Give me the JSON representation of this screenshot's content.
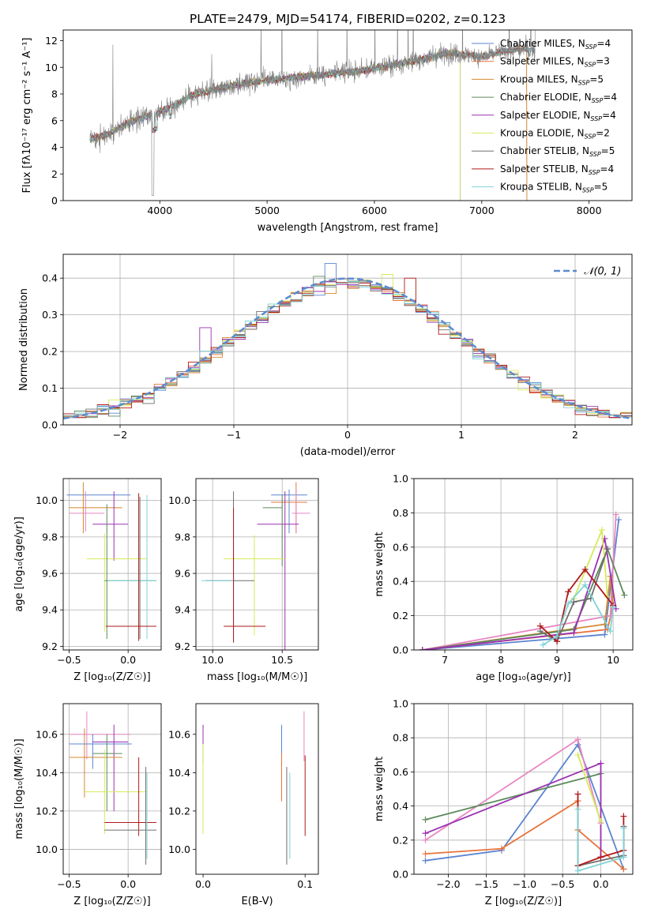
{
  "figure_title": "PLATE=2479, MJD=54174, FIBERID=0202, z=0.123",
  "colors": {
    "Chabrier MILES": "#5b85d0",
    "Salpeter MILES": "#e8743b",
    "Kroupa MILES": "#d4882f",
    "Chabrier ELODIE": "#5c8a5c",
    "Salpeter ELODIE": "#9b30b0",
    "Kroupa ELODIE": "#d6ea5a",
    "Chabrier STELIB": "#6e6e6e",
    "Salpeter STELIB": "#b01a1a",
    "Kroupa STELIB": "#7fd3d8",
    "pink": "#e886c2",
    "gauss": "#5b8bd0"
  },
  "chart_data": [
    {
      "id": "spectrum",
      "type": "line",
      "title": "PLATE=2479, MJD=54174, FIBERID=0202, z=0.123",
      "xlabel": "wavelength [Angstrom, rest frame]",
      "ylabel": "Flux [fλ10⁻¹⁷ erg cm⁻² s⁻¹ A⁻¹]",
      "xlim": [
        3100,
        8400
      ],
      "ylim": [
        0,
        12.8
      ],
      "xticks": [
        4000,
        5000,
        6000,
        7000,
        8000
      ],
      "yticks": [
        0,
        2,
        4,
        6,
        8,
        10,
        12
      ],
      "grid": false,
      "legend_position": "upper-right",
      "data_color": "#808080",
      "continuum": {
        "x": [
          3350,
          3500,
          3700,
          3900,
          4100,
          4300,
          4500,
          4700,
          5000,
          5300,
          5600,
          5900,
          6200,
          6500,
          6700,
          7000,
          7200,
          7400,
          7500
        ],
        "y": [
          4.6,
          4.9,
          5.8,
          6.4,
          7.0,
          7.9,
          8.3,
          8.7,
          9.0,
          9.3,
          9.5,
          9.8,
          10.2,
          10.7,
          11.1,
          10.8,
          11.2,
          11.4,
          11.3
        ]
      },
      "series": [
        {
          "name": "Chabrier MILES, N_SSP=4",
          "label_main": "Chabrier MILES, N",
          "label_sub": "SSP",
          "label_end": "=4",
          "color_key": "Chabrier MILES",
          "xmax": 7500
        },
        {
          "name": "Salpeter MILES, N_SSP=3",
          "label_main": "Salpeter MILES, N",
          "label_sub": "SSP",
          "label_end": "=3",
          "color_key": "Salpeter MILES",
          "xmax": 7420
        },
        {
          "name": "Kroupa MILES, N_SSP=5",
          "label_main": "Kroupa MILES, N",
          "label_sub": "SSP",
          "label_end": "=5",
          "color_key": "Kroupa MILES",
          "xmax": 7420
        },
        {
          "name": "Chabrier ELODIE, N_SSP=4",
          "label_main": "Chabrier ELODIE, N",
          "label_sub": "SSP",
          "label_end": "=4",
          "color_key": "Chabrier ELODIE",
          "xmax": 6800
        },
        {
          "name": "Salpeter ELODIE, N_SSP=4",
          "label_main": "Salpeter ELODIE, N",
          "label_sub": "SSP",
          "label_end": "=4",
          "color_key": "Salpeter ELODIE",
          "xmax": 6800
        },
        {
          "name": "Kroupa ELODIE, N_SSP=2",
          "label_main": "Kroupa ELODIE, N",
          "label_sub": "SSP",
          "label_end": "=2",
          "color_key": "Kroupa ELODIE",
          "xmax": 6800
        },
        {
          "name": "Chabrier STELIB, N_SSP=5",
          "label_main": "Chabrier STELIB, N",
          "label_sub": "SSP",
          "label_end": "=5",
          "color_key": "Chabrier STELIB",
          "xmax": 7500
        },
        {
          "name": "Salpeter STELIB, N_SSP=4",
          "label_main": "Salpeter STELIB, N",
          "label_sub": "SSP",
          "label_end": "=4",
          "color_key": "Salpeter STELIB",
          "xmax": 7500
        },
        {
          "name": "Kroupa STELIB, N_SSP=5",
          "label_main": "Kroupa STELIB, N",
          "label_sub": "SSP",
          "label_end": "=5",
          "color_key": "Kroupa STELIB",
          "xmax": 7500
        }
      ]
    },
    {
      "id": "residuals",
      "type": "histogram",
      "xlabel": "(data-model)/error",
      "ylabel": "Normed distribution",
      "xlim": [
        -2.5,
        2.5
      ],
      "ylim": [
        0,
        0.465
      ],
      "xticks": [
        -2,
        -1,
        0,
        1,
        2
      ],
      "yticks": [
        0.0,
        0.1,
        0.2,
        0.3,
        0.4
      ],
      "grid": true,
      "bin_width": 0.1,
      "legend": "𝒩(0, 1)",
      "legend_position": "upper-right",
      "reference_curve": "normal(0,1)",
      "anomalies": [
        {
          "series": 4,
          "x": -1.25,
          "y": 0.265
        },
        {
          "series": 3,
          "x": -0.25,
          "y": 0.405
        },
        {
          "series": 0,
          "x": -0.15,
          "y": 0.44
        },
        {
          "series": 5,
          "x": 0.35,
          "y": 0.41
        },
        {
          "series": 7,
          "x": 0.55,
          "y": 0.4
        }
      ]
    },
    {
      "id": "age_vs_Z",
      "type": "errorbar",
      "xlabel": "Z [log₁₀(Z/Z☉)]",
      "ylabel": "age  [log₁₀(age/yr)]",
      "xlim": [
        -0.55,
        0.28
      ],
      "ylim": [
        9.18,
        10.12
      ],
      "xticks": [
        -0.5,
        0.0
      ],
      "yticks": [
        9.2,
        9.4,
        9.6,
        9.8,
        10.0
      ],
      "grid": true,
      "points": [
        {
          "color_key": "Chabrier MILES",
          "x": -0.18,
          "xlo": -0.52,
          "xhi": 0.02,
          "y": 10.03,
          "ylo": 10.03,
          "yhi": 10.03
        },
        {
          "color_key": "Kroupa MILES",
          "x": -0.38,
          "xlo": -0.5,
          "xhi": -0.05,
          "y": 9.96,
          "ylo": 9.82,
          "yhi": 10.1
        },
        {
          "color_key": "pink",
          "x": -0.36,
          "xlo": -0.5,
          "xhi": -0.2,
          "y": 9.93,
          "ylo": 9.83,
          "yhi": 10.05
        },
        {
          "color_key": "Salpeter ELODIE",
          "x": -0.12,
          "xlo": -0.3,
          "xhi": -0.0,
          "y": 9.87,
          "ylo": 9.67,
          "yhi": 10.05
        },
        {
          "color_key": "Kroupa ELODIE",
          "x": -0.2,
          "xlo": -0.35,
          "xhi": 0.16,
          "y": 9.68,
          "ylo": 9.28,
          "yhi": 9.82
        },
        {
          "color_key": "Chabrier ELODIE",
          "x": -0.18,
          "xlo": -0.2,
          "xhi": 0.24,
          "y": 9.56,
          "ylo": 9.24,
          "yhi": 9.98
        },
        {
          "color_key": "Kroupa STELIB",
          "x": 0.16,
          "xlo": -0.17,
          "xhi": 0.24,
          "y": 9.56,
          "ylo": 9.24,
          "yhi": 10.03
        },
        {
          "color_key": "Chabrier STELIB",
          "x": 0.1,
          "xlo": 0.1,
          "xhi": 0.1,
          "y": 9.7,
          "ylo": 9.24,
          "yhi": 10.02
        },
        {
          "color_key": "Salpeter STELIB",
          "x": 0.09,
          "xlo": -0.19,
          "xhi": 0.24,
          "y": 9.31,
          "ylo": 9.23,
          "yhi": 10.04
        }
      ]
    },
    {
      "id": "age_vs_mass",
      "type": "errorbar",
      "xlabel": "mass [log₁₀(M/M☉)]",
      "ylabel": "",
      "xlim": [
        9.88,
        10.76
      ],
      "ylim": [
        9.18,
        10.12
      ],
      "xticks": [
        10.0,
        10.5
      ],
      "yticks": [
        9.2,
        9.4,
        9.6,
        9.8,
        10.0
      ],
      "grid": true,
      "points": [
        {
          "color_key": "Chabrier MILES",
          "x": 10.55,
          "xlo": 10.42,
          "xhi": 10.68,
          "y": 10.03,
          "ylo": 9.82,
          "yhi": 10.06
        },
        {
          "color_key": "Salpeter MILES",
          "x": 10.6,
          "xlo": 10.42,
          "xhi": 10.68,
          "y": 9.99,
          "ylo": 9.82,
          "yhi": 10.1
        },
        {
          "color_key": "pink",
          "x": 10.6,
          "xlo": 10.57,
          "xhi": 10.7,
          "y": 9.93,
          "ylo": 9.82,
          "yhi": 10.06
        },
        {
          "color_key": "Salpeter ELODIE",
          "x": 10.52,
          "xlo": 10.32,
          "xhi": 10.62,
          "y": 9.87,
          "ylo": 9.17,
          "yhi": 10.05
        },
        {
          "color_key": "Chabrier ELODIE",
          "x": 10.5,
          "xlo": 10.36,
          "xhi": 10.5,
          "y": 9.96,
          "ylo": 9.64,
          "yhi": 10.03
        },
        {
          "color_key": "Kroupa ELODIE",
          "x": 10.3,
          "xlo": 10.08,
          "xhi": 10.52,
          "y": 9.68,
          "ylo": 9.26,
          "yhi": 9.81
        },
        {
          "color_key": "Chabrier STELIB",
          "x": 10.15,
          "xlo": 9.95,
          "xhi": 10.3,
          "y": 9.56,
          "ylo": 9.23,
          "yhi": 10.05
        },
        {
          "color_key": "Kroupa STELIB",
          "x": 10.02,
          "xlo": 9.92,
          "xhi": 10.15,
          "y": 9.56,
          "ylo": 9.56,
          "yhi": 9.56
        },
        {
          "color_key": "Salpeter STELIB",
          "x": 10.15,
          "xlo": 10.08,
          "xhi": 10.38,
          "y": 9.31,
          "ylo": 9.22,
          "yhi": 9.96
        }
      ]
    },
    {
      "id": "massweight_vs_age",
      "type": "line",
      "xlabel": "age  [log₁₀(age/yr)]",
      "ylabel": "mass weight",
      "xlim": [
        6.45,
        10.35
      ],
      "ylim": [
        0,
        1.0
      ],
      "xticks": [
        7,
        8,
        9,
        10
      ],
      "yticks": [
        0.0,
        0.2,
        0.4,
        0.6,
        0.8,
        1.0
      ],
      "grid": true,
      "series": [
        {
          "color_key": "Chabrier MILES",
          "x": [
            6.6,
            9.85,
            10.1
          ],
          "y": [
            0.0,
            0.09,
            0.76
          ]
        },
        {
          "color_key": "Salpeter MILES",
          "x": [
            6.6,
            9.9,
            10.0
          ],
          "y": [
            0.0,
            0.12,
            0.26
          ]
        },
        {
          "color_key": "pink",
          "x": [
            6.6,
            9.95,
            10.05
          ],
          "y": [
            0.0,
            0.2,
            0.79
          ]
        },
        {
          "color_key": "Kroupa MILES",
          "x": [
            6.6,
            9.85,
            9.95,
            10.0
          ],
          "y": [
            0.0,
            0.15,
            0.43,
            0.26
          ]
        },
        {
          "color_key": "Chabrier ELODIE",
          "x": [
            6.6,
            9.3,
            9.9,
            10.2
          ],
          "y": [
            0.0,
            0.12,
            0.59,
            0.32
          ]
        },
        {
          "color_key": "Salpeter ELODIE",
          "x": [
            6.6,
            9.3,
            9.85,
            10.05
          ],
          "y": [
            0.0,
            0.1,
            0.65,
            0.24
          ]
        },
        {
          "color_key": "Kroupa ELODIE",
          "x": [
            9.3,
            9.8,
            9.9
          ],
          "y": [
            0.3,
            0.7,
            0.31
          ]
        },
        {
          "color_key": "Chabrier STELIB",
          "x": [
            8.7,
            9.0,
            9.3,
            9.6,
            9.9
          ],
          "y": [
            0.11,
            0.05,
            0.28,
            0.3,
            0.59
          ]
        },
        {
          "color_key": "Salpeter STELIB",
          "x": [
            8.7,
            9.0,
            9.2,
            9.5,
            10.0
          ],
          "y": [
            0.14,
            0.05,
            0.34,
            0.47,
            0.26
          ]
        },
        {
          "color_key": "Kroupa STELIB",
          "x": [
            8.75,
            9.0,
            9.2,
            9.5,
            9.95,
            10.0
          ],
          "y": [
            0.03,
            0.08,
            0.27,
            0.38,
            0.11,
            0.25
          ]
        }
      ]
    },
    {
      "id": "mass_vs_Z",
      "type": "errorbar",
      "xlabel": "Z [log₁₀(Z/Z☉)]",
      "ylabel": "mass [log₁₀(M/M☉)]",
      "xlim": [
        -0.55,
        0.28
      ],
      "ylim": [
        9.87,
        10.76
      ],
      "xticks": [
        -0.5,
        0.0
      ],
      "yticks": [
        10.0,
        10.2,
        10.4,
        10.6
      ],
      "grid": true,
      "points": [
        {
          "color_key": "pink",
          "x": -0.35,
          "xlo": -0.5,
          "xhi": 0.02,
          "y": 10.6,
          "ylo": 10.47,
          "yhi": 10.72
        },
        {
          "color_key": "Chabrier MILES",
          "x": -0.3,
          "xlo": -0.5,
          "xhi": 0.03,
          "y": 10.55,
          "ylo": 10.42,
          "yhi": 10.6
        },
        {
          "color_key": "Salpeter ELODIE",
          "x": -0.12,
          "xlo": -0.3,
          "xhi": -0.0,
          "y": 10.56,
          "ylo": 10.2,
          "yhi": 10.65
        },
        {
          "color_key": "Kroupa MILES",
          "x": -0.37,
          "xlo": -0.5,
          "xhi": -0.05,
          "y": 10.48,
          "ylo": 10.27,
          "yhi": 10.63
        },
        {
          "color_key": "Chabrier ELODIE",
          "x": -0.18,
          "xlo": -0.3,
          "xhi": -0.05,
          "y": 10.5,
          "ylo": 10.2,
          "yhi": 10.6
        },
        {
          "color_key": "Kroupa ELODIE",
          "x": -0.2,
          "xlo": -0.37,
          "xhi": 0.16,
          "y": 10.3,
          "ylo": 10.08,
          "yhi": 10.52
        },
        {
          "color_key": "Salpeter STELIB",
          "x": 0.09,
          "xlo": -0.2,
          "xhi": 0.24,
          "y": 10.14,
          "ylo": 10.07,
          "yhi": 10.48
        },
        {
          "color_key": "Chabrier STELIB",
          "x": 0.15,
          "xlo": -0.2,
          "xhi": 0.24,
          "y": 10.1,
          "ylo": 9.92,
          "yhi": 10.43
        },
        {
          "color_key": "Kroupa STELIB",
          "x": 0.16,
          "xlo": 0.16,
          "xhi": 0.16,
          "y": 10.2,
          "ylo": 9.95,
          "yhi": 10.4
        }
      ]
    },
    {
      "id": "mass_vs_ebv",
      "type": "errorbar",
      "xlabel": "E(B-V)",
      "ylabel": "",
      "xlim": [
        -0.007,
        0.113
      ],
      "ylim": [
        9.87,
        10.76
      ],
      "xticks": [
        0.0,
        0.1
      ],
      "yticks": [
        10.0,
        10.2,
        10.4,
        10.6
      ],
      "grid": false,
      "points": [
        {
          "color_key": "Salpeter ELODIE",
          "x": 0.0,
          "y": 10.56,
          "ylo": 10.45,
          "yhi": 10.65
        },
        {
          "color_key": "Kroupa ELODIE",
          "x": 0.0,
          "y": 10.3,
          "ylo": 10.08,
          "yhi": 10.55
        },
        {
          "color_key": "Chabrier MILES",
          "x": 0.077,
          "y": 10.55,
          "ylo": 10.45,
          "yhi": 10.65
        },
        {
          "color_key": "Salpeter MILES",
          "x": 0.077,
          "y": 10.3,
          "ylo": 10.25,
          "yhi": 10.5
        },
        {
          "color_key": "Chabrier STELIB",
          "x": 0.082,
          "y": 10.1,
          "ylo": 9.92,
          "yhi": 10.43
        },
        {
          "color_key": "Kroupa STELIB",
          "x": 0.085,
          "y": 10.2,
          "ylo": 9.95,
          "yhi": 10.4
        },
        {
          "color_key": "pink",
          "x": 0.099,
          "y": 10.6,
          "ylo": 10.46,
          "yhi": 10.72
        },
        {
          "color_key": "Salpeter STELIB",
          "x": 0.1,
          "y": 10.2,
          "ylo": 10.07,
          "yhi": 10.49
        }
      ]
    },
    {
      "id": "massweight_vs_Z",
      "type": "line",
      "xlabel": "Z [log₁₀(Z/Z☉)]",
      "ylabel": "mass weight",
      "xlim": [
        -2.45,
        0.42
      ],
      "ylim": [
        0,
        1.0
      ],
      "xticks": [
        -2.0,
        -1.5,
        -1.0,
        -0.5,
        0.0
      ],
      "yticks": [
        0.0,
        0.2,
        0.4,
        0.6,
        0.8,
        1.0
      ],
      "grid": true,
      "series": [
        {
          "color_key": "Chabrier MILES",
          "x": [
            -2.3,
            -1.3,
            -0.3,
            0.3
          ],
          "y": [
            0.08,
            0.14,
            0.76,
            0.03
          ]
        },
        {
          "color_key": "Salpeter MILES",
          "x": [
            -2.3,
            -1.3,
            -0.3,
            -0.3,
            0.3
          ],
          "y": [
            0.12,
            0.15,
            0.43,
            0.26,
            0.03
          ]
        },
        {
          "color_key": "pink",
          "x": [
            -2.3,
            -0.3,
            0.0
          ],
          "y": [
            0.2,
            0.79,
            0.3
          ]
        },
        {
          "color_key": "Chabrier ELODIE",
          "x": [
            -2.3,
            0.0
          ],
          "y": [
            0.32,
            0.59
          ]
        },
        {
          "color_key": "Salpeter ELODIE",
          "x": [
            -2.3,
            0.0,
            0.0
          ],
          "y": [
            0.24,
            0.65,
            0.1
          ]
        },
        {
          "color_key": "Kroupa ELODIE",
          "x": [
            -0.3,
            0.0
          ],
          "y": [
            0.7,
            0.31
          ]
        },
        {
          "color_key": "Chabrier STELIB",
          "x": [
            -0.3,
            0.3,
            0.3
          ],
          "y": [
            0.05,
            0.11,
            0.28
          ]
        },
        {
          "color_key": "Salpeter STELIB",
          "x": [
            -0.3,
            -0.3,
            0.0,
            0.3,
            0.3
          ],
          "y": [
            0.47,
            0.05,
            0.1,
            0.14,
            0.34
          ]
        },
        {
          "color_key": "Kroupa STELIB",
          "x": [
            -0.3,
            -0.3,
            0.3,
            0.3
          ],
          "y": [
            0.38,
            0.02,
            0.1,
            0.27
          ]
        }
      ]
    }
  ]
}
